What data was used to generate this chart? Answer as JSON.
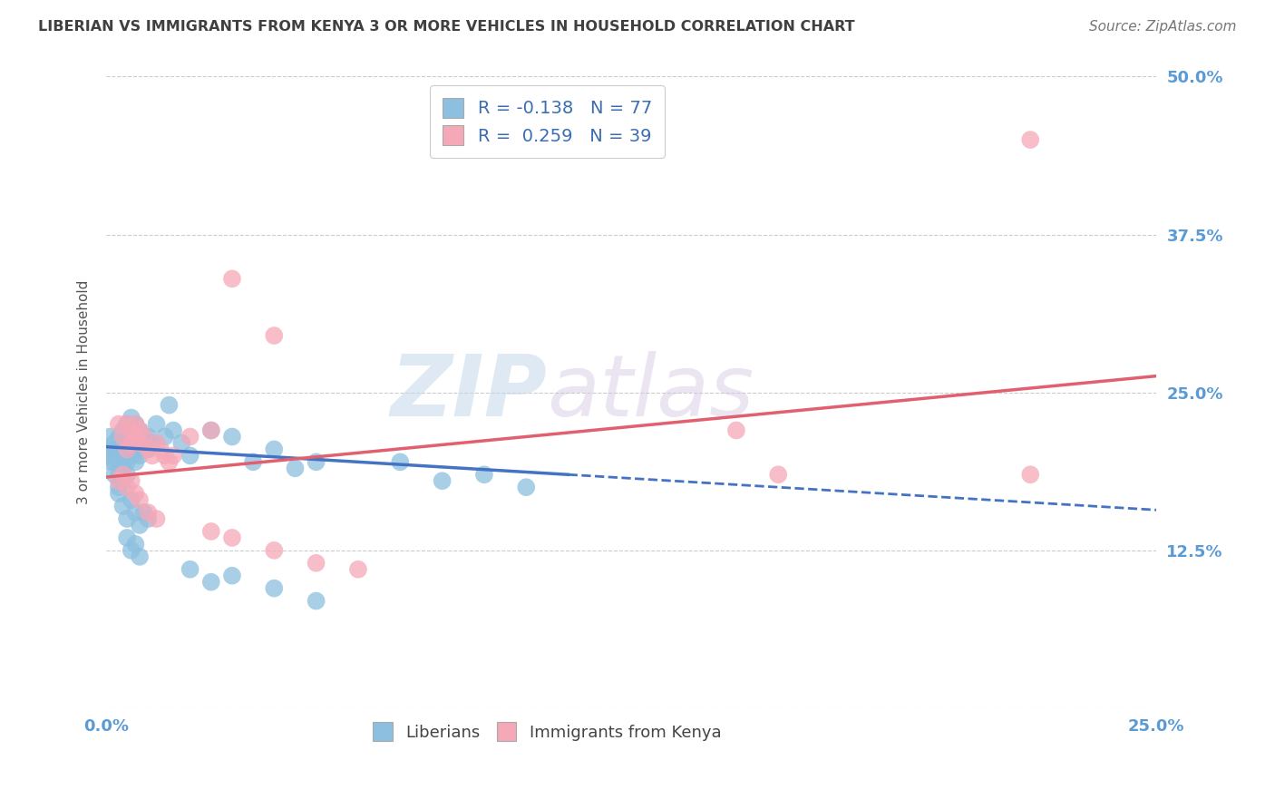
{
  "title": "LIBERIAN VS IMMIGRANTS FROM KENYA 3 OR MORE VEHICLES IN HOUSEHOLD CORRELATION CHART",
  "source": "Source: ZipAtlas.com",
  "ylabel": "3 or more Vehicles in Household",
  "x_min": 0.0,
  "x_max": 0.25,
  "y_min": 0.0,
  "y_max": 0.5,
  "y_ticks": [
    0.0,
    0.125,
    0.25,
    0.375,
    0.5
  ],
  "y_tick_labels": [
    "",
    "12.5%",
    "25.0%",
    "37.5%",
    "50.0%"
  ],
  "blue_color": "#8dc0e0",
  "pink_color": "#f5a8b8",
  "blue_line_color": "#4472c4",
  "pink_line_color": "#e06070",
  "background_color": "#ffffff",
  "grid_color": "#cccccc",
  "title_color": "#404040",
  "tick_color": "#5b9bd5",
  "blue_scatter": [
    [
      0.003,
      0.205
    ],
    [
      0.003,
      0.195
    ],
    [
      0.003,
      0.185
    ],
    [
      0.003,
      0.175
    ],
    [
      0.003,
      0.215
    ],
    [
      0.004,
      0.21
    ],
    [
      0.004,
      0.22
    ],
    [
      0.004,
      0.2
    ],
    [
      0.004,
      0.19
    ],
    [
      0.004,
      0.18
    ],
    [
      0.005,
      0.215
    ],
    [
      0.005,
      0.225
    ],
    [
      0.005,
      0.205
    ],
    [
      0.005,
      0.195
    ],
    [
      0.005,
      0.185
    ],
    [
      0.006,
      0.23
    ],
    [
      0.006,
      0.22
    ],
    [
      0.006,
      0.21
    ],
    [
      0.006,
      0.2
    ],
    [
      0.007,
      0.225
    ],
    [
      0.007,
      0.215
    ],
    [
      0.007,
      0.205
    ],
    [
      0.007,
      0.195
    ],
    [
      0.008,
      0.22
    ],
    [
      0.008,
      0.21
    ],
    [
      0.008,
      0.2
    ],
    [
      0.009,
      0.215
    ],
    [
      0.009,
      0.205
    ],
    [
      0.01,
      0.215
    ],
    [
      0.01,
      0.21
    ],
    [
      0.01,
      0.205
    ],
    [
      0.011,
      0.21
    ],
    [
      0.001,
      0.2
    ],
    [
      0.001,
      0.195
    ],
    [
      0.002,
      0.205
    ],
    [
      0.002,
      0.195
    ],
    [
      0.002,
      0.185
    ],
    [
      0.001,
      0.205
    ],
    [
      0.001,
      0.215
    ],
    [
      0.002,
      0.21
    ],
    [
      0.003,
      0.2
    ],
    [
      0.004,
      0.215
    ],
    [
      0.005,
      0.21
    ],
    [
      0.006,
      0.205
    ],
    [
      0.015,
      0.24
    ],
    [
      0.02,
      0.2
    ],
    [
      0.025,
      0.22
    ],
    [
      0.03,
      0.215
    ],
    [
      0.035,
      0.195
    ],
    [
      0.04,
      0.205
    ],
    [
      0.045,
      0.19
    ],
    [
      0.05,
      0.195
    ],
    [
      0.012,
      0.225
    ],
    [
      0.014,
      0.215
    ],
    [
      0.016,
      0.22
    ],
    [
      0.018,
      0.21
    ],
    [
      0.07,
      0.195
    ],
    [
      0.08,
      0.18
    ],
    [
      0.09,
      0.185
    ],
    [
      0.1,
      0.175
    ],
    [
      0.003,
      0.17
    ],
    [
      0.004,
      0.16
    ],
    [
      0.005,
      0.15
    ],
    [
      0.006,
      0.165
    ],
    [
      0.007,
      0.155
    ],
    [
      0.008,
      0.145
    ],
    [
      0.009,
      0.155
    ],
    [
      0.01,
      0.15
    ],
    [
      0.005,
      0.135
    ],
    [
      0.006,
      0.125
    ],
    [
      0.007,
      0.13
    ],
    [
      0.008,
      0.12
    ],
    [
      0.02,
      0.11
    ],
    [
      0.025,
      0.1
    ],
    [
      0.03,
      0.105
    ],
    [
      0.04,
      0.095
    ],
    [
      0.05,
      0.085
    ]
  ],
  "pink_scatter": [
    [
      0.003,
      0.225
    ],
    [
      0.004,
      0.215
    ],
    [
      0.005,
      0.205
    ],
    [
      0.005,
      0.225
    ],
    [
      0.006,
      0.22
    ],
    [
      0.006,
      0.21
    ],
    [
      0.007,
      0.215
    ],
    [
      0.007,
      0.225
    ],
    [
      0.008,
      0.21
    ],
    [
      0.008,
      0.22
    ],
    [
      0.009,
      0.215
    ],
    [
      0.01,
      0.205
    ],
    [
      0.011,
      0.2
    ],
    [
      0.012,
      0.21
    ],
    [
      0.013,
      0.205
    ],
    [
      0.014,
      0.2
    ],
    [
      0.015,
      0.195
    ],
    [
      0.016,
      0.2
    ],
    [
      0.02,
      0.215
    ],
    [
      0.025,
      0.22
    ],
    [
      0.003,
      0.18
    ],
    [
      0.004,
      0.185
    ],
    [
      0.005,
      0.175
    ],
    [
      0.006,
      0.18
    ],
    [
      0.007,
      0.17
    ],
    [
      0.008,
      0.165
    ],
    [
      0.01,
      0.155
    ],
    [
      0.012,
      0.15
    ],
    [
      0.025,
      0.14
    ],
    [
      0.03,
      0.135
    ],
    [
      0.04,
      0.125
    ],
    [
      0.05,
      0.115
    ],
    [
      0.06,
      0.11
    ],
    [
      0.03,
      0.34
    ],
    [
      0.04,
      0.295
    ],
    [
      0.15,
      0.22
    ],
    [
      0.16,
      0.185
    ],
    [
      0.22,
      0.45
    ],
    [
      0.22,
      0.185
    ]
  ],
  "blue_line": {
    "x0": 0.0,
    "y0": 0.207,
    "x1": 0.25,
    "y1": 0.157
  },
  "blue_line_solid_end": 0.11,
  "pink_line": {
    "x0": 0.0,
    "y0": 0.183,
    "x1": 0.25,
    "y1": 0.263
  }
}
